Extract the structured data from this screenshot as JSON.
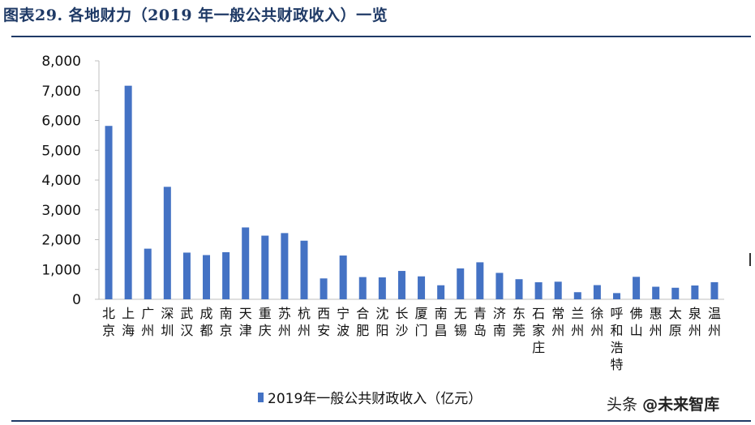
{
  "title": "图表29.  各地财力（2019 年一般公共财政收入）一览",
  "watermark": {
    "prefix": "头条",
    "handle": "@未来智库"
  },
  "colors": {
    "bar": "#4472c4",
    "title": "#1f3a66",
    "axis": "#bfbfbf"
  },
  "chart_data": {
    "type": "bar",
    "categories": [
      "北京",
      "上海",
      "广州",
      "深圳",
      "武汉",
      "成都",
      "南京",
      "天津",
      "重庆",
      "苏州",
      "杭州",
      "西安",
      "宁波",
      "合肥",
      "沈阳",
      "长沙",
      "厦门",
      "南昌",
      "无锡",
      "青岛",
      "济南",
      "东莞",
      "石家庄",
      "常州",
      "兰州",
      "徐州",
      "呼和浩特",
      "佛山",
      "惠州",
      "太原",
      "泉州",
      "温州"
    ],
    "series": [
      {
        "name": "2019年一般公共财政收入（亿元）",
        "values": [
          5817,
          7165,
          1698,
          3773,
          1566,
          1483,
          1580,
          2410,
          2135,
          2221,
          1966,
          700,
          1468,
          745,
          735,
          951,
          769,
          470,
          1036,
          1241,
          886,
          674,
          571,
          590,
          238,
          475,
          208,
          753,
          421,
          387,
          463,
          574
        ]
      }
    ],
    "ylim": [
      0,
      8000
    ],
    "yticks": [
      "0",
      "1,000",
      "2,000",
      "3,000",
      "4,000",
      "5,000",
      "6,000",
      "7,000",
      "8,000"
    ],
    "grid": false,
    "legend": "bottom"
  }
}
